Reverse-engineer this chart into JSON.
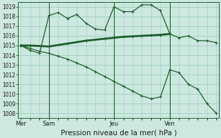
{
  "background_color": "#cce8e0",
  "grid_color": "#99ccbb",
  "line_color": "#1a5c2a",
  "ylim": [
    1007.5,
    1019.5
  ],
  "yticks": [
    1008,
    1009,
    1010,
    1011,
    1012,
    1013,
    1014,
    1015,
    1016,
    1017,
    1018,
    1019
  ],
  "xlabel": "Pression niveau de la mer( hPa )",
  "xlabel_fontsize": 7.5,
  "day_labels": [
    "Mer",
    "Sam",
    "Jeu",
    "Ven"
  ],
  "day_positions": [
    0,
    3,
    10,
    16
  ],
  "vline_positions": [
    3,
    10,
    16
  ],
  "xlim": [
    -0.3,
    21.3
  ],
  "line1_x": [
    0,
    1,
    2,
    3,
    4,
    5,
    6,
    7,
    8,
    9,
    10,
    11,
    12,
    13,
    14,
    15,
    16,
    17,
    18,
    19,
    20,
    21
  ],
  "line1_y": [
    1015.0,
    1014.5,
    1014.2,
    1018.1,
    1018.4,
    1017.8,
    1018.2,
    1017.3,
    1016.7,
    1016.6,
    1019.0,
    1018.5,
    1018.5,
    1019.2,
    1019.2,
    1018.6,
    1016.2,
    1015.8,
    1016.0,
    1015.5,
    1015.5,
    1015.3
  ],
  "line2_x": [
    0,
    1,
    3,
    5,
    7,
    9,
    10,
    11,
    12,
    13,
    14,
    15,
    16
  ],
  "line2_y": [
    1015.0,
    1015.0,
    1014.9,
    1015.2,
    1015.5,
    1015.7,
    1015.8,
    1015.9,
    1015.95,
    1016.0,
    1016.05,
    1016.1,
    1016.2
  ],
  "line3_x": [
    0,
    1,
    2,
    3,
    4,
    5,
    6,
    7,
    8,
    9,
    10,
    11,
    12,
    13,
    14,
    15,
    16,
    17,
    18,
    19,
    20,
    21
  ],
  "line3_y": [
    1015.0,
    1014.7,
    1014.4,
    1014.2,
    1013.9,
    1013.6,
    1013.2,
    1012.8,
    1012.3,
    1011.8,
    1011.3,
    1010.8,
    1010.3,
    1009.8,
    1009.5,
    1009.7,
    1012.5,
    1012.2,
    1011.0,
    1010.5,
    1009.0,
    1008.0
  ]
}
